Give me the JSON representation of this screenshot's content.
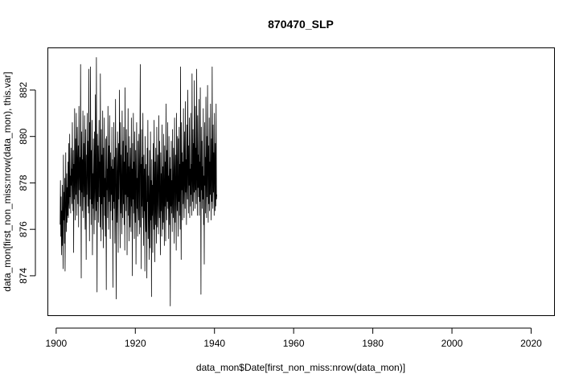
{
  "chart_data": {
    "type": "line",
    "title": "870470_SLP",
    "xlabel": "data_mon$Date[first_non_miss:nrow(data_mon)]",
    "ylabel": "data_mon[first_non_miss:nrow(data_mon), this.var]",
    "xlim": [
      1898,
      2026
    ],
    "ylim": [
      872.3,
      883.8
    ],
    "x_ticks": [
      "1900",
      "1920",
      "1940",
      "1960",
      "1980",
      "2000",
      "2020"
    ],
    "y_ticks": [
      "874",
      "876",
      "878",
      "880",
      "882"
    ],
    "grid": false,
    "legend": "none",
    "line_color": "#000000",
    "series": [
      {
        "x_start": 1901.0,
        "x_step_months": 1,
        "values": [
          876.2,
          878.1,
          875.7,
          877.4,
          874.9,
          876.8,
          875.3,
          877.9,
          876.1,
          874.3,
          879.2,
          876.4,
          877.6,
          875.4,
          878.2,
          874.2,
          876.5,
          879.3,
          877.1,
          875.9,
          878.4,
          876.3,
          877.8,
          876.6,
          878.9,
          876.5,
          879.7,
          877.2,
          876.9,
          880.1,
          877.4,
          878.3,
          876.7,
          879.5,
          877.9,
          878.6,
          877.1,
          880.6,
          878.5,
          876.8,
          879.4,
          875.0,
          878.8,
          877.3,
          881.2,
          878.1,
          876.4,
          879.9,
          877.5,
          881.0,
          878.2,
          876.6,
          880.4,
          878.8,
          877.1,
          879.6,
          876.1,
          881.3,
          878.6,
          877.7,
          879.1,
          877.0,
          883.1,
          878.3,
          873.9,
          880.2,
          877.6,
          879.0,
          876.8,
          881.1,
          878.4,
          876.5,
          879.7,
          877.4,
          880.9,
          878.1,
          876.0,
          880.3,
          877.8,
          874.7,
          879.2,
          877.5,
          881.0,
          878.6,
          877.0,
          879.8,
          876.7,
          882.9,
          878.5,
          875.5,
          880.6,
          877.3,
          883.0,
          878.9,
          876.2,
          879.4,
          877.1,
          880.7,
          874.9,
          878.4,
          876.9,
          879.9,
          877.6,
          875.8,
          880.2,
          878.3,
          876.4,
          881.8,
          878.0,
          876.8,
          883.4,
          877.5,
          873.3,
          880.1,
          877.2,
          879.6,
          876.3,
          878.8,
          880.7,
          877.4,
          878.9,
          876.1,
          882.7,
          877.8,
          875.5,
          880.3,
          877.1,
          879.2,
          876.0,
          881.1,
          878.3,
          875.2,
          879.5,
          877.4,
          880.8,
          876.6,
          878.2,
          875.7,
          879.9,
          877.3,
          873.4,
          880.0,
          877.7,
          878.6,
          876.5,
          881.3,
          878.4,
          876.0,
          879.6,
          877.2,
          880.9,
          878.0,
          875.6,
          879.3,
          876.8,
          878.7,
          877.5,
          880.4,
          876.4,
          879.0,
          873.5,
          878.6,
          877.2,
          880.6,
          876.9,
          879.1,
          875.4,
          878.3,
          881.6,
          877.0,
          873.0,
          879.5,
          877.8,
          876.3,
          880.2,
          878.1,
          875.0,
          879.7,
          877.3,
          878.8,
          882.0,
          877.4,
          875.2,
          880.6,
          876.7,
          879.2,
          877.6,
          875.8,
          881.1,
          878.3,
          876.5,
          879.8,
          877.1,
          880.4,
          876.2,
          878.9,
          875.1,
          882.1,
          877.5,
          879.6,
          876.8,
          880.3,
          878.0,
          874.9,
          879.3,
          877.4,
          881.2,
          876.6,
          878.7,
          875.5,
          880.0,
          877.9,
          876.1,
          879.5,
          878.2,
          875.9,
          880.8,
          877.0,
          878.6,
          874.0,
          879.7,
          877.3,
          881.0,
          876.7,
          878.9,
          875.6,
          880.2,
          877.8,
          876.3,
          879.4,
          874.5,
          878.5,
          880.6,
          876.9,
          878.2,
          875.7,
          879.8,
          877.1,
          876.4,
          880.1,
          878.4,
          875.8,
          879.6,
          883.1,
          876.1,
          878.8,
          874.3,
          880.3,
          877.0,
          879.1,
          876.5,
          881.0,
          877.7,
          875.3,
          879.2,
          876.8,
          878.6,
          874.2,
          880.0,
          877.4,
          875.9,
          878.8,
          876.3,
          873.9,
          879.5,
          877.2,
          880.7,
          875.6,
          878.3,
          876.9,
          874.7,
          879.4,
          877.6,
          875.2,
          880.2,
          876.4,
          878.1,
          873.1,
          879.0,
          876.6,
          877.9,
          875.0,
          879.7,
          877.3,
          876.0,
          880.7,
          877.8,
          874.6,
          878.9,
          876.2,
          879.5,
          877.0,
          875.4,
          880.4,
          877.7,
          876.1,
          879.2,
          877.5,
          875.8,
          880.9,
          878.2,
          876.5,
          879.8,
          877.1,
          874.9,
          879.3,
          876.8,
          878.4,
          875.7,
          880.5,
          877.6,
          876.0,
          878.7,
          876.3,
          880.1,
          877.4,
          875.3,
          879.6,
          877.0,
          878.9,
          875.5,
          881.4,
          877.8,
          876.4,
          879.4,
          877.2,
          880.6,
          876.9,
          878.3,
          875.6,
          880.0,
          877.5,
          876.2,
          879.1,
          872.7,
          878.6,
          877.0,
          879.8,
          876.7,
          878.1,
          875.9,
          880.3,
          877.3,
          876.5,
          879.5,
          877.9,
          875.4,
          880.8,
          878.4,
          876.3,
          879.2,
          877.6,
          875.1,
          881.0,
          878.0,
          876.8,
          880.0,
          877.4,
          875.7,
          879.9,
          877.2,
          880.4,
          876.6,
          878.8,
          876.0,
          883.0,
          878.2,
          874.7,
          880.6,
          877.7,
          879.3,
          876.4,
          878.9,
          877.1,
          881.2,
          877.8,
          876.5,
          880.2,
          878.4,
          876.9,
          881.5,
          877.6,
          879.0,
          876.2,
          880.5,
          878.1,
          877.3,
          882.0,
          878.7,
          876.7,
          879.6,
          877.9,
          880.8,
          876.5,
          878.6,
          877.0,
          881.0,
          877.5,
          878.8,
          876.6,
          882.7,
          878.3,
          877.2,
          880.3,
          876.8,
          879.7,
          877.6,
          882.4,
          878.0,
          876.9,
          881.3,
          877.7,
          879.5,
          877.1,
          882.9,
          878.4,
          876.6,
          880.9,
          877.8,
          879.2,
          877.4,
          881.6,
          876.6,
          878.9,
          877.2,
          882.1,
          878.5,
          873.2,
          880.4,
          877.7,
          879.8,
          876.9,
          878.7,
          877.3,
          881.2,
          876.2,
          878.3,
          874.5,
          880.6,
          877.9,
          879.1,
          876.7,
          881.7,
          878.2,
          876.5,
          880.0,
          877.4,
          882.2,
          878.7,
          876.3,
          879.6,
          877.1,
          880.8,
          876.8,
          878.9,
          877.5,
          881.4,
          878.0,
          876.4,
          879.9,
          877.2,
          883.0,
          878.3,
          876.9,
          880.5,
          877.6,
          879.3,
          876.6,
          881.0,
          878.4,
          876.8,
          879.7,
          877.0,
          881.4,
          877.3,
          877.5
        ]
      }
    ]
  }
}
